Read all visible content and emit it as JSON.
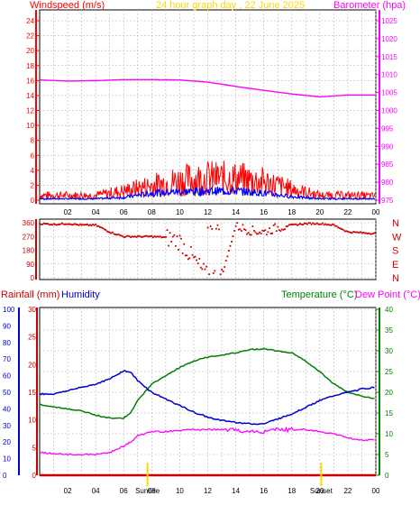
{
  "header": {
    "title": "24 hour graph day , 22 June 2025",
    "left_label": "Windspeed (m/s)",
    "right_label": "Barometer (hpa)"
  },
  "colors": {
    "wind": "#ff0000",
    "wind_avg": "#0000ff",
    "barometer": "#ff00ff",
    "direction": "#cc0000",
    "humidity": "#0000cc",
    "temperature": "#008000",
    "dewpoint": "#ff00ff",
    "rain": "#cc0000",
    "title": "#ffd700",
    "sun_marker": "#ffd700",
    "grid": "#b4b4b4"
  },
  "x_ticks": [
    "02",
    "04",
    "06",
    "08",
    "10",
    "12",
    "14",
    "16",
    "18",
    "20",
    "22",
    "00"
  ],
  "chart_data": [
    {
      "type": "line",
      "title": "24 hour graph day , 22 June 2025",
      "xlabel": "",
      "ylabel": "Windspeed (m/s)",
      "y2label": "Barometer (hpa)",
      "x_hours": [
        0,
        2,
        4,
        6,
        8,
        10,
        12,
        14,
        16,
        18,
        20,
        22,
        24
      ],
      "ylim": [
        0,
        25
      ],
      "y_ticks": [
        "0",
        "2",
        "4",
        "6",
        "8",
        "10",
        "12",
        "14",
        "16",
        "18",
        "20",
        "22",
        "24"
      ],
      "y2lim": [
        975,
        1026
      ],
      "y2_ticks": [
        "975",
        "980",
        "985",
        "990",
        "995",
        "1000",
        "1005",
        "1010",
        "1015",
        "1020",
        "1025"
      ],
      "series": [
        {
          "name": "Wind gust",
          "axis": "left",
          "values": [
            0.8,
            0.8,
            0.8,
            1.5,
            2.4,
            3.2,
            3.6,
            3.5,
            3.0,
            1.8,
            0.8,
            0.8,
            0.7
          ]
        },
        {
          "name": "Wind average",
          "axis": "left",
          "values": [
            0.2,
            0.2,
            0.2,
            0.4,
            1.0,
            1.2,
            1.3,
            1.3,
            1.0,
            0.5,
            0.2,
            0.2,
            0.2
          ]
        },
        {
          "name": "Barometer",
          "axis": "right",
          "values": [
            1008.5,
            1008.2,
            1008.3,
            1008.6,
            1008.6,
            1008.5,
            1007.9,
            1006.7,
            1005.6,
            1004.6,
            1003.8,
            1004.3,
            1004.3
          ]
        }
      ]
    },
    {
      "type": "scatter",
      "ylabel": "Wind direction",
      "ylim": [
        0,
        360
      ],
      "y_ticks": [
        "0",
        "90",
        "180",
        "270",
        "360"
      ],
      "y2_ticks": [
        "N",
        "E",
        "S",
        "W",
        "N"
      ],
      "x_hours": [
        0,
        1,
        2,
        3,
        4,
        5,
        6,
        7,
        8,
        9,
        10,
        11,
        12,
        13,
        14,
        15,
        16,
        17,
        18,
        19,
        20,
        21,
        22,
        23,
        24
      ],
      "values": [
        355,
        350,
        355,
        345,
        345,
        300,
        270,
        270,
        270,
        265,
        240,
        120,
        5,
        10,
        340,
        310,
        300,
        330,
        345,
        355,
        355,
        345,
        300,
        295,
        290
      ]
    },
    {
      "type": "line",
      "title": "",
      "ylabel": "Rainfall (mm)",
      "ylabel2": "Humidity",
      "y2label": "Temperature (°C)",
      "y2label2": "Dew Point (°C)",
      "x_hours": [
        0,
        1,
        2,
        3,
        4,
        5,
        6,
        6.5,
        7,
        8,
        9,
        10,
        11,
        12,
        13,
        14,
        15,
        16,
        17,
        18,
        19,
        20,
        21,
        22,
        23,
        24
      ],
      "rain_ylim": [
        0,
        30
      ],
      "rain_ticks": [
        "0",
        "5",
        "10",
        "15",
        "20",
        "25",
        "30"
      ],
      "humidity_ylim": [
        0,
        100
      ],
      "humidity_ticks": [
        "0",
        "10",
        "20",
        "30",
        "40",
        "50",
        "60",
        "70",
        "80",
        "90",
        "100"
      ],
      "temp_ylim": [
        0,
        40
      ],
      "temp_ticks": [
        "0",
        "5",
        "10",
        "15",
        "20",
        "25",
        "30",
        "35",
        "40"
      ],
      "series": [
        {
          "name": "Humidity",
          "axis": "humidity",
          "values": [
            49,
            49,
            51,
            53,
            55,
            58,
            63,
            62,
            57,
            50,
            46,
            42,
            38,
            35,
            33,
            32,
            31,
            31,
            34,
            37,
            41,
            45,
            48,
            50,
            52,
            53
          ]
        },
        {
          "name": "Temperature (°C)",
          "axis": "temp",
          "values": [
            17,
            16.5,
            16,
            15.5,
            14.5,
            13.8,
            13.8,
            15,
            18,
            22,
            24,
            26,
            27.5,
            28.5,
            29,
            29.5,
            30.3,
            30.5,
            30,
            29.5,
            27.5,
            25,
            22,
            20,
            19,
            18.5
          ]
        },
        {
          "name": "Dew Point (°C)",
          "axis": "temp",
          "values": [
            5.5,
            5.2,
            5,
            5,
            5,
            5.5,
            7,
            8,
            9.5,
            10.5,
            10.5,
            10.8,
            11,
            11,
            11,
            10.8,
            10.5,
            10.5,
            11,
            11,
            11,
            10.5,
            10,
            9,
            8.5,
            8.5
          ]
        },
        {
          "name": "Rainfall (mm)",
          "axis": "rain",
          "values": [
            0,
            0,
            0,
            0,
            0,
            0,
            0,
            0,
            0,
            0,
            0,
            0,
            0,
            0,
            0,
            0,
            0,
            0,
            0,
            0,
            0,
            0,
            0,
            0,
            0,
            0
          ]
        }
      ],
      "sunrise_hour": 7.7,
      "sunset_hour": 20.1,
      "sunrise_label": "Sunrise",
      "sunset_label": "Sunset"
    }
  ]
}
